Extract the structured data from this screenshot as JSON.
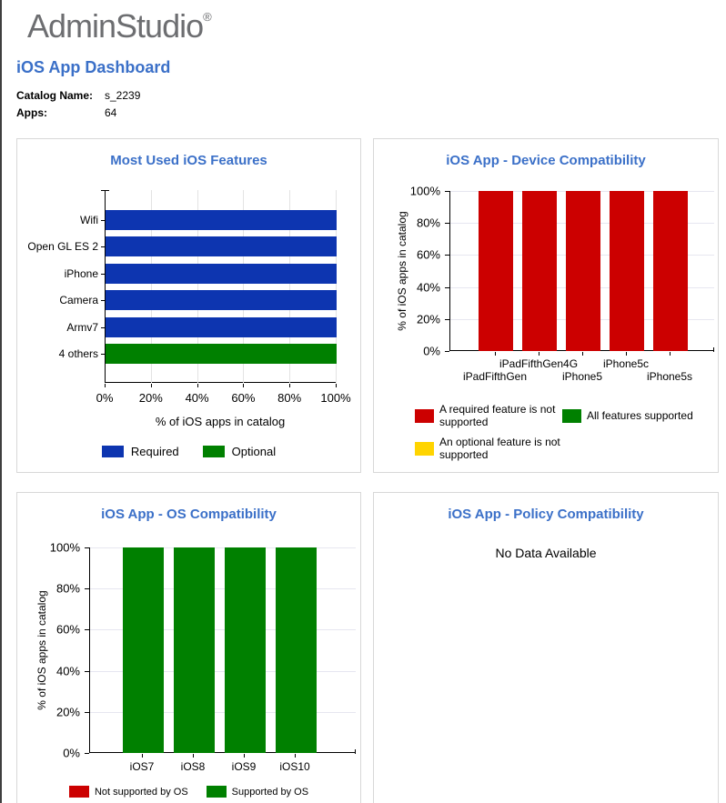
{
  "header": {
    "logo": "AdminStudio",
    "logo_reg": "®",
    "page_title": "iOS App Dashboard",
    "catalog_label": "Catalog Name:",
    "catalog_value": "s_2239",
    "apps_label": "Apps:",
    "apps_value": "64"
  },
  "colors": {
    "title_blue": "#3b70c8",
    "blue": "#0d35b0",
    "red": "#cc0000",
    "green": "#008000",
    "yellow": "#ffd400",
    "logo_gray": "#6d6e71",
    "panel_border": "#d8d8d8"
  },
  "chart_data": [
    {
      "type": "bar",
      "orientation": "horizontal",
      "title": "Most Used iOS Features",
      "categories": [
        "Wifi",
        "Open GL ES 2",
        "iPhone",
        "Camera",
        "Armv7",
        "4 others"
      ],
      "values": [
        100,
        100,
        100,
        100,
        100,
        100
      ],
      "bar_colors": [
        "blue",
        "blue",
        "blue",
        "blue",
        "blue",
        "green"
      ],
      "xlabel": "% of iOS apps in catalog",
      "xlim": [
        0,
        100
      ],
      "ticks": [
        {
          "label": "0%",
          "value": 0
        },
        {
          "label": "20%",
          "value": 20
        },
        {
          "label": "40%",
          "value": 40
        },
        {
          "label": "60%",
          "value": 60
        },
        {
          "label": "80%",
          "value": 80
        },
        {
          "label": "100%",
          "value": 100
        }
      ],
      "grid": "vertical",
      "legend": [
        {
          "label": "Required",
          "color": "blue"
        },
        {
          "label": "Optional",
          "color": "green"
        }
      ],
      "legend_position": "bottom"
    },
    {
      "type": "bar",
      "orientation": "vertical",
      "title": "iOS App - Device Compatibility",
      "categories": [
        "iPadFifthGen",
        "iPadFifthGen4G",
        "iPhone5",
        "iPhone5c",
        "iPhone5s"
      ],
      "values": [
        100,
        100,
        100,
        100,
        100
      ],
      "bar_colors": [
        "red",
        "red",
        "red",
        "red",
        "red"
      ],
      "ylabel": "% of iOS apps in catalog",
      "ylim": [
        0,
        100
      ],
      "ticks": [
        {
          "label": "0%",
          "value": 0
        },
        {
          "label": "20%",
          "value": 20
        },
        {
          "label": "40%",
          "value": 40
        },
        {
          "label": "60%",
          "value": 60
        },
        {
          "label": "80%",
          "value": 80
        },
        {
          "label": "100%",
          "value": 100
        }
      ],
      "grid": "horizontal",
      "staggered_x_labels": true,
      "legend": [
        {
          "label": "A required feature is not supported",
          "color": "red"
        },
        {
          "label": "All features supported",
          "color": "green"
        },
        {
          "label": "An optional feature is not supported",
          "color": "yellow"
        }
      ],
      "legend_position": "bottom"
    },
    {
      "type": "bar",
      "orientation": "vertical",
      "title": "iOS App - OS Compatibility",
      "categories": [
        "iOS7",
        "iOS8",
        "iOS9",
        "iOS10"
      ],
      "values": [
        100,
        100,
        100,
        100
      ],
      "bar_colors": [
        "green",
        "green",
        "green",
        "green"
      ],
      "ylabel": "% of iOS apps in catalog",
      "ylim": [
        0,
        100
      ],
      "ticks": [
        {
          "label": "0%",
          "value": 0
        },
        {
          "label": "20%",
          "value": 20
        },
        {
          "label": "40%",
          "value": 40
        },
        {
          "label": "60%",
          "value": 60
        },
        {
          "label": "80%",
          "value": 80
        },
        {
          "label": "100%",
          "value": 100
        }
      ],
      "grid": "horizontal",
      "staggered_x_labels": false,
      "legend": [
        {
          "label": "Not supported by OS",
          "color": "red"
        },
        {
          "label": "Supported by OS",
          "color": "green"
        }
      ],
      "legend_position": "bottom"
    },
    {
      "type": "none",
      "title": "iOS App - Policy Compatibility",
      "message": "No Data Available"
    }
  ]
}
